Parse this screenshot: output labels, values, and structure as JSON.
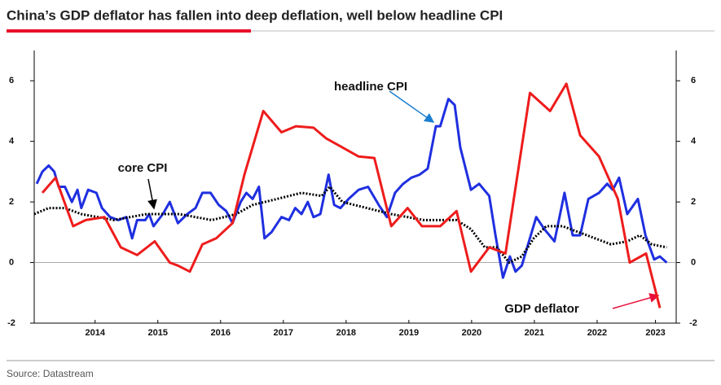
{
  "chart_data": {
    "type": "line",
    "title": "China’s GDP deflator has fallen into deep deflation, well below headline CPI",
    "source": "Source: Datastream",
    "xlim": [
      2013.5,
      2023.73
    ],
    "xticks": [
      {
        "value": 2014.47,
        "label": "2014"
      },
      {
        "value": 2015.47,
        "label": "2015"
      },
      {
        "value": 2016.47,
        "label": "2016"
      },
      {
        "value": 2017.47,
        "label": "2017"
      },
      {
        "value": 2018.47,
        "label": "2018"
      },
      {
        "value": 2019.47,
        "label": "2019"
      },
      {
        "value": 2020.47,
        "label": "2020"
      },
      {
        "value": 2021.47,
        "label": "2021"
      },
      {
        "value": 2022.47,
        "label": "2022"
      },
      {
        "value": 2023.4,
        "label": "2023"
      }
    ],
    "ylim": [
      -2,
      7
    ],
    "yticks": [
      -2,
      0,
      2,
      4,
      6
    ],
    "y2lim": [
      -2,
      7
    ],
    "y2ticks": [
      -2,
      0,
      2,
      4,
      6
    ],
    "hlines": [
      0
    ],
    "series": [
      {
        "name": "headline CPI",
        "color": "#1f2fe0",
        "dash": false,
        "x": [
          2013.54,
          2013.63,
          2013.73,
          2013.82,
          2013.89,
          2013.99,
          2014.1,
          2014.19,
          2014.25,
          2014.36,
          2014.49,
          2014.58,
          2014.71,
          2014.84,
          2014.97,
          2015.06,
          2015.14,
          2015.27,
          2015.33,
          2015.4,
          2015.55,
          2015.66,
          2015.79,
          2015.94,
          2016.07,
          2016.18,
          2016.31,
          2016.44,
          2016.56,
          2016.66,
          2016.79,
          2016.88,
          2016.98,
          2017.08,
          2017.17,
          2017.28,
          2017.44,
          2017.56,
          2017.66,
          2017.76,
          2017.86,
          2017.95,
          2018.06,
          2018.19,
          2018.28,
          2018.38,
          2018.51,
          2018.67,
          2018.82,
          2018.99,
          2019.12,
          2019.25,
          2019.38,
          2019.51,
          2019.64,
          2019.77,
          2019.9,
          2019.97,
          2020.1,
          2020.2,
          2020.29,
          2020.46,
          2020.59,
          2020.75,
          2020.85,
          2020.97,
          2021.08,
          2021.17,
          2021.27,
          2021.37,
          2021.5,
          2021.63,
          2021.79,
          2021.95,
          2022.08,
          2022.2,
          2022.33,
          2022.5,
          2022.63,
          2022.72,
          2022.82,
          2022.95,
          2023.12,
          2023.24,
          2023.38,
          2023.47,
          2023.58
        ],
        "values": [
          2.6,
          3.0,
          3.2,
          3.0,
          2.5,
          2.5,
          2.0,
          2.4,
          1.8,
          2.4,
          2.3,
          1.8,
          1.5,
          1.4,
          1.5,
          0.8,
          1.4,
          1.4,
          1.6,
          1.2,
          1.6,
          2.0,
          1.3,
          1.6,
          1.8,
          2.3,
          2.3,
          1.9,
          1.7,
          1.3,
          2.0,
          2.3,
          2.1,
          2.5,
          0.8,
          1.0,
          1.5,
          1.4,
          1.8,
          1.6,
          2.0,
          1.5,
          1.6,
          2.9,
          1.9,
          1.8,
          2.1,
          2.4,
          2.5,
          1.9,
          1.5,
          2.3,
          2.6,
          2.8,
          2.9,
          3.1,
          4.5,
          4.5,
          5.4,
          5.2,
          3.8,
          2.4,
          2.6,
          2.2,
          0.9,
          -0.5,
          0.2,
          -0.3,
          -0.1,
          0.6,
          1.5,
          1.1,
          0.7,
          2.3,
          0.9,
          0.9,
          2.1,
          2.3,
          2.6,
          2.4,
          2.8,
          1.6,
          2.1,
          0.9,
          0.1,
          0.2,
          0.0
        ]
      },
      {
        "name": "core CPI",
        "color": "#000000",
        "dash": true,
        "x": [
          2013.5,
          2013.73,
          2013.99,
          2014.25,
          2014.77,
          2015.29,
          2015.81,
          2016.33,
          2016.72,
          2016.98,
          2017.37,
          2017.76,
          2018.08,
          2018.21,
          2018.41,
          2018.8,
          2019.19,
          2019.71,
          2020.23,
          2020.46,
          2020.68,
          2020.87,
          2021.07,
          2021.27,
          2021.46,
          2021.66,
          2021.92,
          2022.31,
          2022.69,
          2022.95,
          2023.15,
          2023.34,
          2023.58
        ],
        "values": [
          1.6,
          1.8,
          1.8,
          1.6,
          1.4,
          1.6,
          1.6,
          1.4,
          1.6,
          1.9,
          2.1,
          2.3,
          2.2,
          2.5,
          2.0,
          1.8,
          1.6,
          1.4,
          1.4,
          1.1,
          0.5,
          0.5,
          0.0,
          0.2,
          0.8,
          1.2,
          1.2,
          0.9,
          0.6,
          0.7,
          0.9,
          0.6,
          0.5
        ]
      },
      {
        "name": "GDP deflator",
        "color": "#ee1c1c",
        "dash": false,
        "x": [
          2013.63,
          2013.84,
          2014.12,
          2014.32,
          2014.62,
          2014.88,
          2015.14,
          2015.42,
          2015.66,
          2015.79,
          2015.98,
          2016.18,
          2016.4,
          2016.66,
          2016.85,
          2017.15,
          2017.44,
          2017.67,
          2017.95,
          2018.15,
          2018.41,
          2018.67,
          2018.92,
          2019.19,
          2019.45,
          2019.68,
          2019.97,
          2020.23,
          2020.46,
          2020.75,
          2021.01,
          2021.4,
          2021.72,
          2021.98,
          2022.2,
          2022.5,
          2022.8,
          2022.99,
          2023.25,
          2023.47
        ],
        "values": [
          2.3,
          2.8,
          1.2,
          1.4,
          1.5,
          0.5,
          0.25,
          0.7,
          0.0,
          -0.1,
          -0.3,
          0.6,
          0.8,
          1.3,
          2.9,
          5.0,
          4.3,
          4.5,
          4.45,
          4.1,
          3.8,
          3.5,
          3.45,
          1.2,
          1.8,
          1.2,
          1.2,
          1.7,
          -0.3,
          0.5,
          0.3,
          5.6,
          5.0,
          5.9,
          4.2,
          3.5,
          2.1,
          0.0,
          0.3,
          -1.5
        ]
      }
    ]
  }
}
